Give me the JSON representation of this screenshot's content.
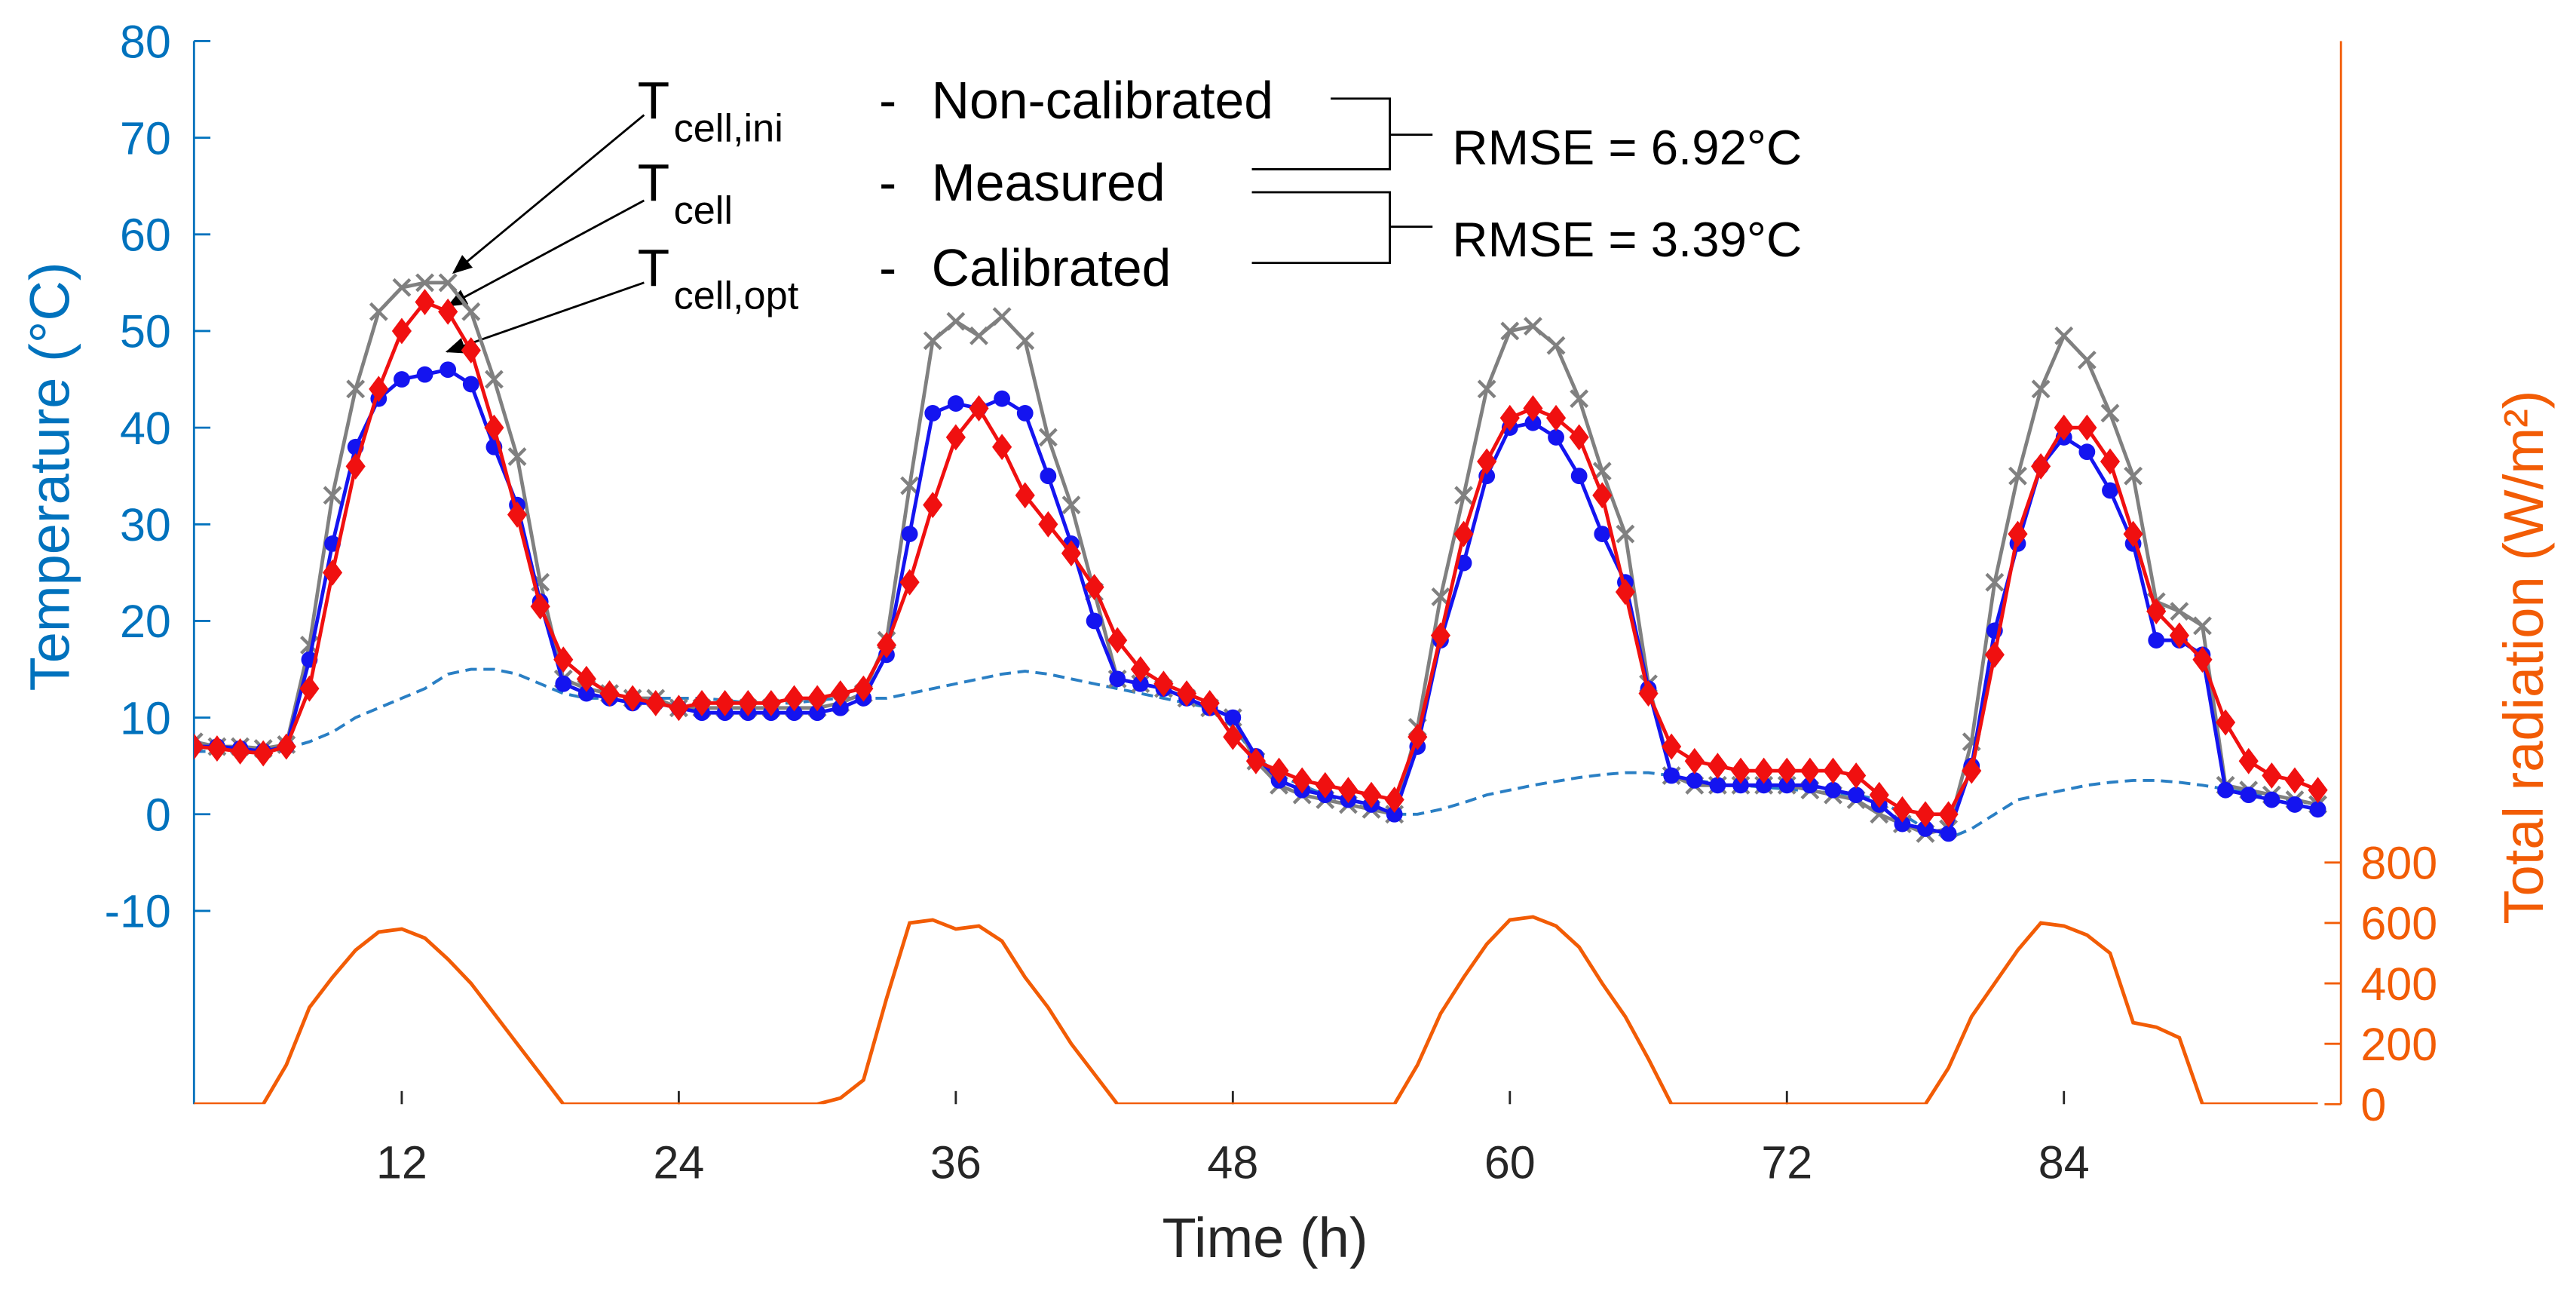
{
  "chart_data": {
    "type": "line",
    "xlabel": "Time (h)",
    "ylabel": "Temperature (°C)",
    "y2label": "Total radiation (W/m²)",
    "x": [
      3,
      4,
      5,
      6,
      7,
      8,
      9,
      10,
      11,
      12,
      13,
      14,
      15,
      16,
      17,
      18,
      19,
      20,
      21,
      22,
      23,
      24,
      25,
      26,
      27,
      28,
      29,
      30,
      31,
      32,
      33,
      34,
      35,
      36,
      37,
      38,
      39,
      40,
      41,
      42,
      43,
      44,
      45,
      46,
      47,
      48,
      49,
      50,
      51,
      52,
      53,
      54,
      55,
      56,
      57,
      58,
      59,
      60,
      61,
      62,
      63,
      64,
      65,
      66,
      67,
      68,
      69,
      70,
      71,
      72,
      73,
      74,
      75,
      76,
      77,
      78,
      79,
      80,
      81,
      82,
      83,
      84,
      85,
      86,
      87,
      88,
      89,
      90,
      91,
      92,
      93,
      94,
      95
    ],
    "xlim": [
      3,
      96
    ],
    "xticks": [
      12,
      24,
      36,
      48,
      60,
      72,
      84
    ],
    "ylim": [
      -30,
      80
    ],
    "yticks": [
      -10,
      0,
      10,
      20,
      30,
      40,
      50,
      60,
      70,
      80
    ],
    "y2lim": [
      0,
      3520
    ],
    "y2ticks": [
      0,
      200,
      400,
      600,
      800
    ],
    "left_axis_color": "#0072bd",
    "right_axis_color": "#f25c05",
    "separator": "-",
    "series": [
      {
        "name": "Non-calibrated",
        "symbol": "T",
        "subscript": "cell,ini",
        "color": "#808080",
        "marker": "x",
        "values": [
          7.5,
          7,
          7,
          6.8,
          7.2,
          17.5,
          33,
          44,
          52,
          54.5,
          55,
          55,
          52,
          45,
          37,
          24,
          14,
          13,
          12.5,
          12,
          12,
          11,
          11,
          11,
          11,
          11,
          11,
          11,
          11.5,
          12.5,
          18,
          34,
          49,
          51,
          49.5,
          51.5,
          49,
          39,
          32,
          23,
          14,
          13.5,
          13,
          12,
          11,
          10,
          5.5,
          3,
          2,
          1.5,
          1,
          0.5,
          0,
          9,
          22.5,
          33,
          44,
          50,
          50.5,
          48.5,
          43,
          35.5,
          29,
          13.5,
          4,
          3,
          3,
          3,
          3,
          3,
          2.5,
          2,
          1.5,
          0,
          -1,
          -2,
          -1.5,
          7.5,
          24,
          35,
          44,
          49.5,
          47,
          41.5,
          35,
          22,
          21,
          19.5,
          3,
          2.5,
          2,
          1.5,
          1
        ]
      },
      {
        "name": "Measured",
        "symbol": "T",
        "subscript": "cell",
        "color": "#1414f0",
        "marker": "o",
        "values": [
          7,
          7,
          6.8,
          6.5,
          7,
          16,
          28,
          38,
          43,
          45,
          45.5,
          46,
          44.5,
          38,
          32,
          22,
          13.5,
          12.5,
          12,
          11.5,
          11.5,
          11,
          10.5,
          10.5,
          10.5,
          10.5,
          10.5,
          10.5,
          11,
          12,
          16.5,
          29,
          41.5,
          42.5,
          42,
          43,
          41.5,
          35,
          28,
          20,
          14,
          13.5,
          13,
          12,
          11,
          10,
          6,
          3.5,
          2.5,
          2,
          1.5,
          1,
          0,
          7,
          18,
          26,
          35,
          40,
          40.5,
          39,
          35,
          29,
          24,
          13,
          4,
          3.5,
          3,
          3,
          3,
          3,
          3,
          2.5,
          2,
          1,
          -1,
          -1.5,
          -2,
          5,
          19,
          28,
          36,
          39,
          37.5,
          33.5,
          28,
          18,
          18,
          16.5,
          2.5,
          2,
          1.5,
          1,
          0.5
        ]
      },
      {
        "name": "Calibrated",
        "symbol": "T",
        "subscript": "cell,opt",
        "color": "#f01010",
        "marker": "d",
        "values": [
          7,
          6.8,
          6.5,
          6.3,
          7,
          13,
          25,
          36,
          44,
          50,
          53,
          52,
          48,
          40,
          31,
          21.5,
          16,
          14,
          12.5,
          12,
          11.5,
          11,
          11.5,
          11.5,
          11.5,
          11.5,
          12,
          12,
          12.5,
          13,
          17.5,
          24,
          32,
          39,
          42,
          38,
          33,
          30,
          27,
          23.5,
          18,
          15,
          13.5,
          12.5,
          11.5,
          8,
          5.5,
          4.5,
          3.5,
          3,
          2.5,
          2,
          1.5,
          8,
          18.5,
          29,
          36.5,
          41,
          42,
          41,
          39,
          33,
          23,
          12.5,
          7,
          5.5,
          5,
          4.5,
          4.5,
          4.5,
          4.5,
          4.5,
          4,
          2,
          0.5,
          0,
          0,
          4.5,
          16.5,
          29,
          36,
          40,
          40,
          36.5,
          29,
          21,
          18.5,
          16,
          9.5,
          5.5,
          4,
          3.5,
          2.5
        ]
      },
      {
        "color": "#2a7fc4",
        "dash": true,
        "values": [
          6.5,
          6.5,
          6.5,
          6.5,
          6.8,
          7.5,
          8.5,
          10,
          11,
          12,
          13,
          14.5,
          15,
          15,
          14.5,
          13.5,
          12.5,
          12,
          12,
          12,
          12,
          12,
          12,
          11.8,
          11.5,
          11.5,
          11.5,
          11.8,
          12,
          12,
          12,
          12.5,
          13,
          13.5,
          14,
          14.5,
          14.8,
          14.5,
          14,
          13.5,
          13,
          12.5,
          12,
          11.5,
          11,
          9,
          6,
          4,
          3,
          2,
          1.2,
          0.5,
          0,
          0,
          0.5,
          1.2,
          2,
          2.5,
          3,
          3.4,
          3.8,
          4.1,
          4.3,
          4.3,
          4,
          3.5,
          3.2,
          3,
          2.8,
          2.6,
          2.4,
          2.2,
          2,
          1.5,
          0,
          -1.5,
          -2.5,
          -1.5,
          0,
          1.5,
          2,
          2.5,
          3,
          3.3,
          3.5,
          3.5,
          3.3,
          3,
          2.6,
          2.2,
          1.8,
          1.4,
          1
        ]
      },
      {
        "color": "#f25c05",
        "axis": "y2",
        "values": [
          0,
          0,
          0,
          0,
          130,
          320,
          420,
          510,
          570,
          580,
          550,
          480,
          400,
          300,
          200,
          100,
          0,
          0,
          0,
          0,
          0,
          0,
          0,
          0,
          0,
          0,
          0,
          0,
          20,
          80,
          350,
          600,
          610,
          580,
          590,
          540,
          420,
          320,
          200,
          100,
          0,
          0,
          0,
          0,
          0,
          0,
          0,
          0,
          0,
          0,
          0,
          0,
          0,
          130,
          300,
          420,
          530,
          610,
          620,
          590,
          520,
          400,
          290,
          150,
          0,
          0,
          0,
          0,
          0,
          0,
          0,
          0,
          0,
          0,
          0,
          0,
          120,
          290,
          400,
          510,
          600,
          590,
          560,
          500,
          270,
          255,
          220,
          0,
          0,
          0,
          0,
          0,
          0
        ]
      }
    ],
    "annotations": [
      "RMSE = 6.92°C",
      "RMSE = 3.39°C"
    ]
  }
}
